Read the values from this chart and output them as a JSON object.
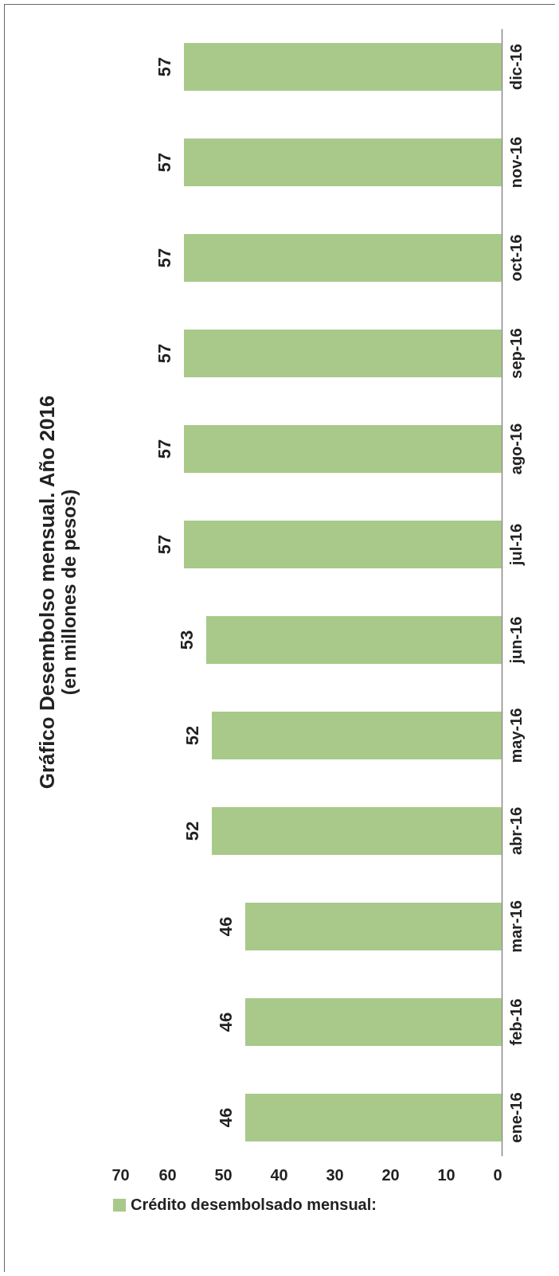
{
  "chart_data": {
    "type": "bar",
    "orientation": "horizontal",
    "title": "Gráfico Desembolso mensual. Año 2016",
    "subtitle": "(en millones de pesos)",
    "categories": [
      "dic-16",
      "nov-16",
      "oct-16",
      "sep-16",
      "ago-16",
      "jul-16",
      "jun-16",
      "may-16",
      "abr-16",
      "mar-16",
      "feb-16",
      "ene-16"
    ],
    "series": [
      {
        "name": "Crédito desembolsado mensual:",
        "color": "#a9c98a",
        "values": [
          57,
          57,
          57,
          57,
          57,
          57,
          53,
          52,
          52,
          46,
          46,
          46
        ]
      }
    ],
    "xlim": [
      70,
      0
    ],
    "xticks": [
      0,
      10,
      20,
      30,
      40,
      50,
      60,
      70
    ],
    "grid": false,
    "legend": "bottom",
    "data_labels": true
  }
}
